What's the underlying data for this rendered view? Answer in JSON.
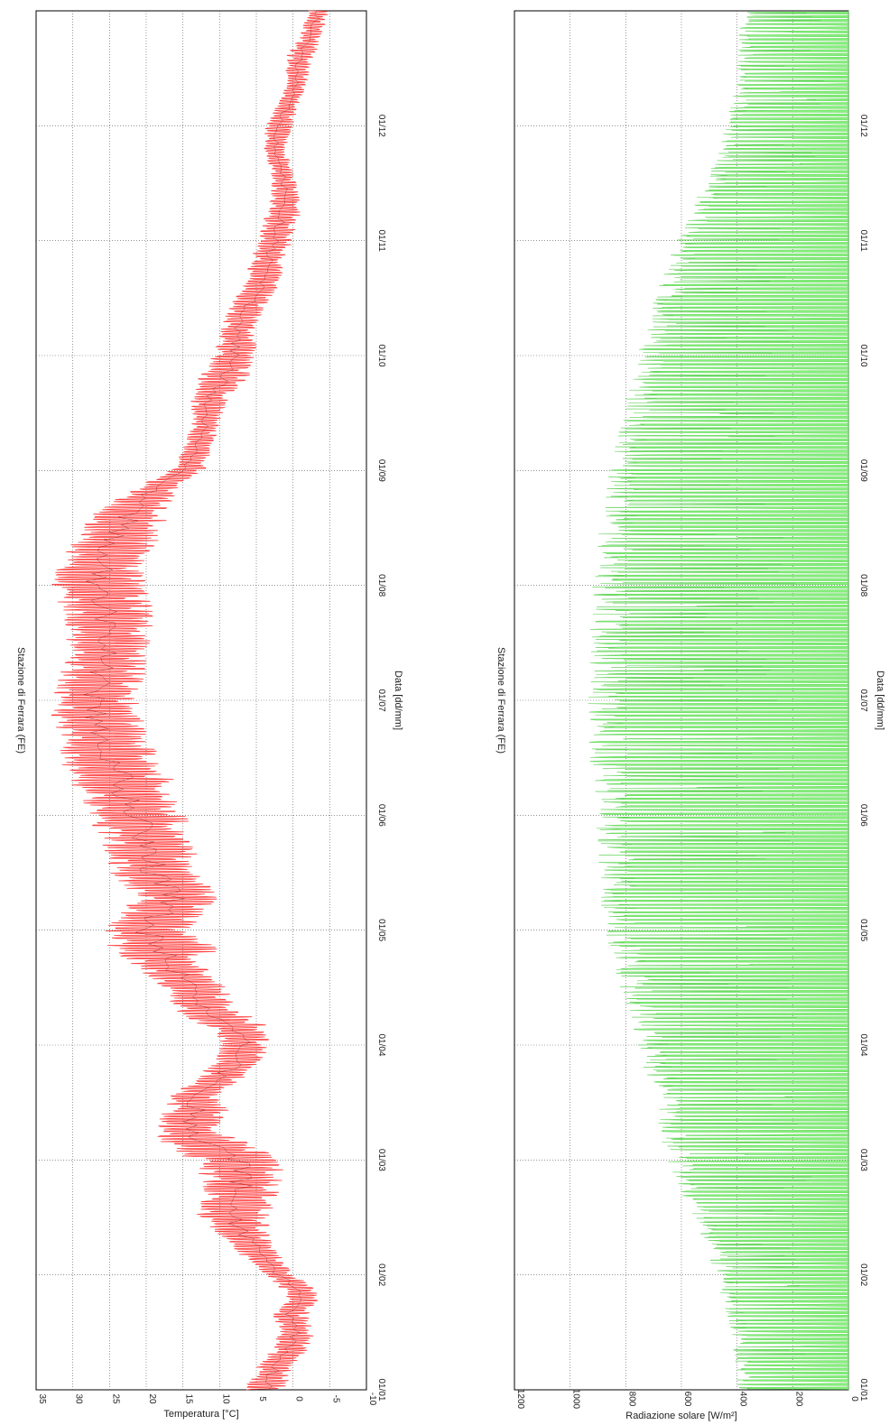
{
  "chart_data": [
    {
      "type": "line",
      "title": "Stazione di Ferrara (FE)",
      "xlabel": "Data [dd/mm]",
      "ylabel": "Temperatura [°C]",
      "ylim": [
        -10,
        35
      ],
      "yticks": [
        -10,
        -5,
        0,
        5,
        10,
        15,
        20,
        25,
        30,
        35
      ],
      "xticks": [
        "01/01",
        "01/02",
        "01/03",
        "01/04",
        "01/05",
        "01/06",
        "01/07",
        "01/08",
        "01/09",
        "01/10",
        "01/11",
        "01/12"
      ],
      "grid": true,
      "color": "#ff3b3b",
      "series": [
        {
          "x_month": [
            0.0,
            0.1,
            0.2,
            0.35,
            0.5,
            0.65,
            0.8,
            0.95,
            1.0,
            1.15,
            1.3,
            1.5,
            1.7,
            1.9,
            2.0,
            2.1,
            2.25,
            2.4,
            2.55,
            2.7,
            2.85,
            3.0,
            3.15,
            3.3,
            3.5,
            3.7,
            3.85,
            4.0,
            4.15,
            4.3,
            4.5,
            4.7,
            4.85,
            5.0,
            5.15,
            5.3,
            5.5,
            5.7,
            5.85,
            6.0,
            6.2,
            6.4,
            6.6,
            6.8,
            7.0,
            7.2,
            7.4,
            7.6,
            7.8,
            8.0,
            8.2,
            8.4,
            8.6,
            8.8,
            9.0,
            9.2,
            9.4,
            9.6,
            9.8,
            10.0,
            10.2,
            10.4,
            10.6,
            10.8,
            11.0,
            11.2,
            11.4,
            11.6,
            11.8,
            12.0
          ],
          "y_min": [
            1,
            0,
            0,
            -2,
            -3,
            -2,
            -4,
            -2,
            0,
            1,
            3,
            3,
            2,
            1,
            2,
            4,
            10,
            8,
            10,
            7,
            4,
            3,
            3,
            7,
            9,
            12,
            10,
            14,
            12,
            10,
            13,
            13,
            14,
            14,
            16,
            16,
            18,
            20,
            20,
            21,
            20,
            20,
            19,
            19,
            20,
            20,
            18,
            17,
            16,
            12,
            11,
            10,
            9,
            6,
            5,
            5,
            4,
            2,
            1,
            0,
            -1,
            -1,
            0,
            1,
            0,
            -1,
            -2,
            -3,
            -4,
            -5
          ],
          "y_max": [
            7,
            6,
            5,
            3,
            2,
            3,
            1,
            3,
            4,
            7,
            9,
            14,
            12,
            13,
            14,
            18,
            19,
            18,
            17,
            14,
            11,
            10,
            12,
            16,
            18,
            22,
            26,
            26,
            24,
            22,
            25,
            26,
            27,
            28,
            29,
            31,
            32,
            32,
            33,
            33,
            32,
            31,
            31,
            32,
            33,
            32,
            30,
            28,
            23,
            17,
            15,
            14,
            14,
            13,
            11,
            10,
            9,
            7,
            6,
            5,
            4,
            3,
            3,
            4,
            4,
            2,
            1,
            1,
            -1,
            -2
          ]
        }
      ]
    },
    {
      "type": "area",
      "title": "Stazione di Ferrara (FE)",
      "xlabel": "Data [dd/mm]",
      "ylabel": "Radiazione solare [W/m²]",
      "ylim": [
        0,
        1200
      ],
      "yticks": [
        0,
        200,
        400,
        600,
        800,
        1000,
        1200
      ],
      "xticks": [
        "01/01",
        "01/02",
        "01/03",
        "01/04",
        "01/05",
        "01/06",
        "01/07",
        "01/08",
        "01/09",
        "01/10",
        "01/11",
        "01/12"
      ],
      "grid": true,
      "color": "#86f07d",
      "series": [
        {
          "x_month": [
            0.0,
            0.5,
            1.0,
            1.5,
            2.0,
            2.5,
            3.0,
            3.5,
            4.0,
            4.5,
            5.0,
            5.5,
            6.0,
            6.5,
            7.0,
            7.5,
            8.0,
            8.5,
            9.0,
            9.5,
            10.0,
            10.5,
            11.0,
            11.5,
            12.0
          ],
          "envelope_max": [
            400,
            420,
            480,
            560,
            660,
            700,
            760,
            820,
            880,
            900,
            920,
            930,
            940,
            930,
            920,
            900,
            860,
            820,
            760,
            700,
            620,
            520,
            440,
            400,
            390
          ]
        }
      ]
    }
  ]
}
